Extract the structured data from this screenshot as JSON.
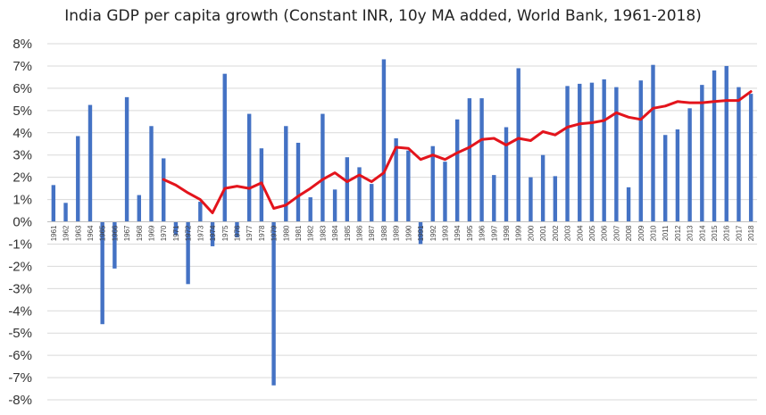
{
  "chart_data": {
    "type": "bar",
    "title": "India GDP per capita growth (Constant INR, 10y MA added, World Bank, 1961-2018)",
    "xlabel": "",
    "ylabel": "",
    "ylim": [
      -8,
      8
    ],
    "yticks": [
      8,
      7,
      6,
      5,
      4,
      3,
      2,
      1,
      0,
      -1,
      -2,
      -3,
      -4,
      -5,
      -6,
      -7,
      -8
    ],
    "ytick_labels": [
      "8%",
      "7%",
      "6%",
      "5%",
      "4%",
      "3%",
      "2%",
      "1%",
      "0%",
      "-1%",
      "-2%",
      "-3%",
      "-4%",
      "-5%",
      "-6%",
      "-7%",
      "-8%"
    ],
    "grid": "horizontal",
    "legend": "none",
    "categories": [
      "1961",
      "1962",
      "1963",
      "1964",
      "1965",
      "1966",
      "1967",
      "1968",
      "1969",
      "1970",
      "1971",
      "1972",
      "1973",
      "1974",
      "1975",
      "1976",
      "1977",
      "1978",
      "1979",
      "1980",
      "1981",
      "1982",
      "1983",
      "1984",
      "1985",
      "1986",
      "1987",
      "1988",
      "1989",
      "1990",
      "1991",
      "1992",
      "1993",
      "1994",
      "1995",
      "1996",
      "1997",
      "1998",
      "1999",
      "2000",
      "2001",
      "2002",
      "2003",
      "2004",
      "2005",
      "2006",
      "2007",
      "2008",
      "2009",
      "2010",
      "2011",
      "2012",
      "2013",
      "2014",
      "2015",
      "2016",
      "2017",
      "2018"
    ],
    "series": [
      {
        "type": "bar",
        "color": "#4472C4",
        "values": [
          1.65,
          0.85,
          3.85,
          5.25,
          -4.6,
          -2.1,
          5.6,
          1.2,
          4.3,
          2.85,
          -0.6,
          -2.8,
          0.9,
          -1.1,
          6.65,
          -0.7,
          4.85,
          3.3,
          -7.35,
          4.3,
          3.55,
          1.1,
          4.85,
          1.45,
          2.9,
          2.45,
          1.7,
          7.3,
          3.75,
          3.2,
          -1.0,
          3.4,
          2.7,
          4.6,
          5.55,
          5.55,
          2.1,
          4.25,
          6.9,
          2.0,
          3.0,
          2.05,
          6.1,
          6.2,
          6.25,
          6.4,
          6.05,
          1.55,
          6.35,
          7.05,
          3.9,
          4.15,
          5.1,
          6.15,
          6.8,
          7.0,
          6.05,
          5.75
        ]
      },
      {
        "type": "line",
        "color": "#E3141C",
        "values": [
          null,
          null,
          null,
          null,
          null,
          null,
          null,
          null,
          null,
          1.9,
          1.65,
          1.3,
          1.0,
          0.4,
          1.5,
          1.6,
          1.5,
          1.75,
          0.6,
          0.75,
          1.15,
          1.5,
          1.9,
          2.2,
          1.8,
          2.1,
          1.8,
          2.2,
          3.35,
          3.3,
          2.8,
          3.0,
          2.8,
          3.1,
          3.35,
          3.7,
          3.75,
          3.45,
          3.75,
          3.65,
          4.05,
          3.9,
          4.25,
          4.4,
          4.45,
          4.55,
          4.9,
          4.7,
          4.6,
          5.1,
          5.2,
          5.4,
          5.35,
          5.35,
          5.4,
          5.45,
          5.45,
          5.85
        ]
      }
    ]
  }
}
